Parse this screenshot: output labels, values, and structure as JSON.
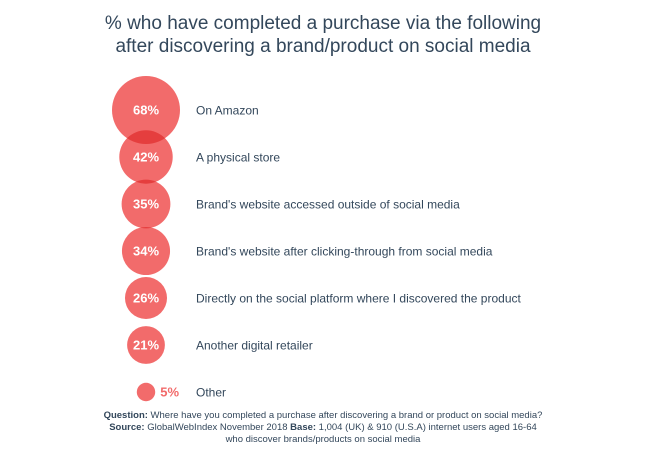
{
  "chart_data": {
    "type": "bubble",
    "title_lines": [
      "% who have completed a purchase via the following",
      "after discovering a brand/product on social media"
    ],
    "unit": "%",
    "categories": [
      "On Amazon",
      "A physical store",
      "Brand's website accessed outside of social media",
      "Brand's website after clicking-through from social media",
      "Directly on the social platform where I discovered the product",
      "Another digital retailer",
      "Other"
    ],
    "values": [
      68,
      42,
      35,
      34,
      26,
      21,
      5
    ],
    "value_labels": [
      "68%",
      "42%",
      "35%",
      "34%",
      "26%",
      "21%",
      "5%"
    ],
    "bubble_color": "#f26b6b",
    "overlap_color": "#e53e3e"
  },
  "footnote": {
    "question_label": "Question:",
    "question_text": " Where have you completed a purchase after discovering a brand or product on social media?",
    "source_label": " Source:",
    "source_text": " GlobalWebIndex November 2018",
    "base_label": " Base:",
    "base_text": " 1,004 (UK) & 910 (U.S.A) internet users aged 16-64 who discover brands/products on social media"
  }
}
